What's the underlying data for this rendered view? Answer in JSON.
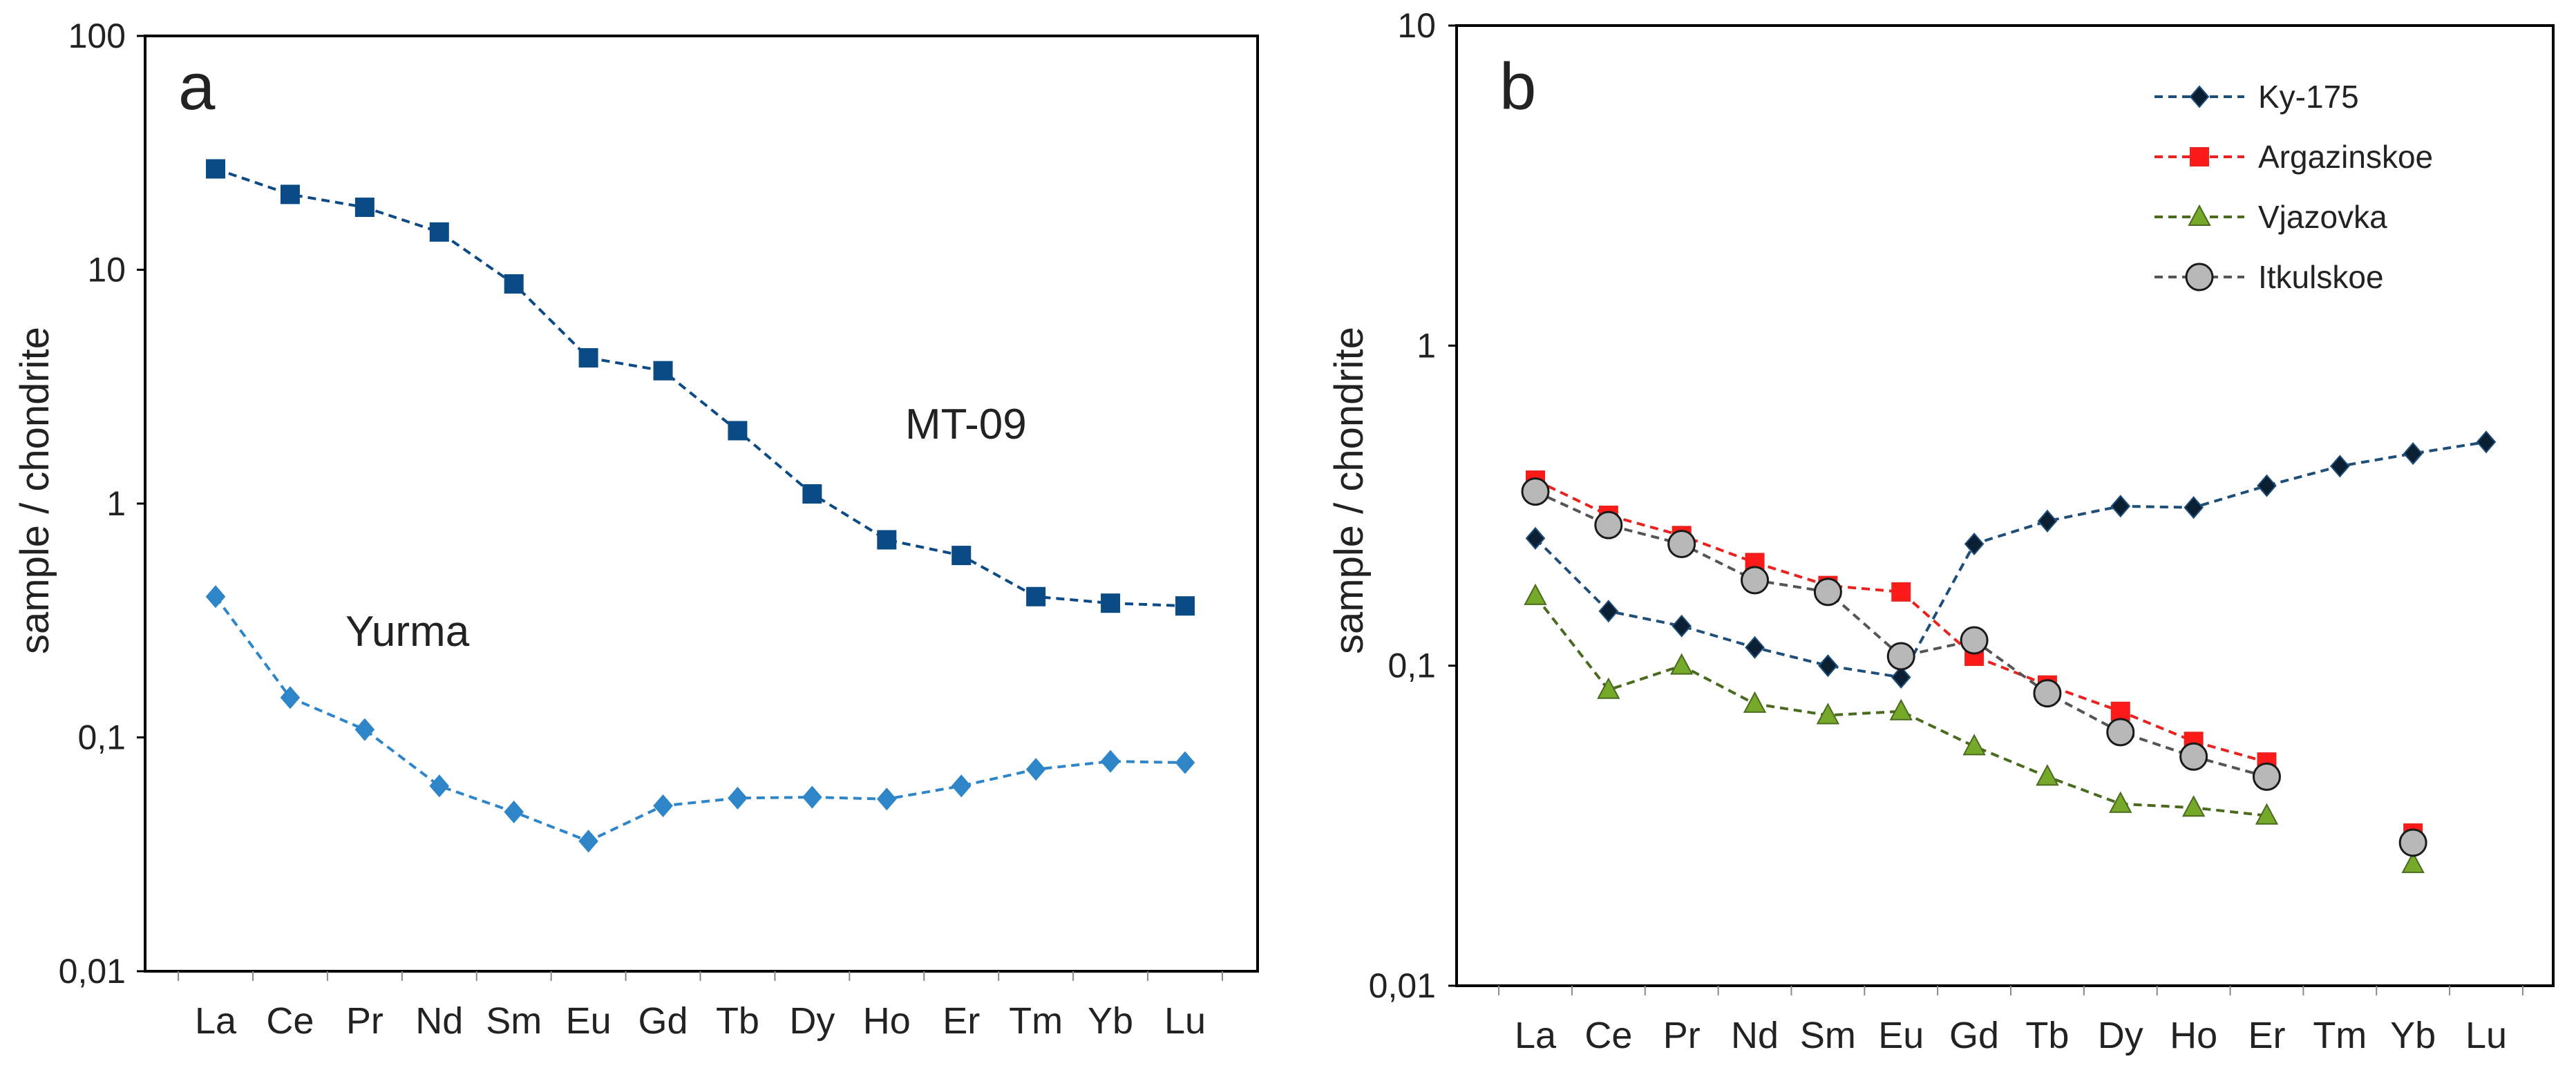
{
  "chart_data": [
    {
      "type": "line",
      "panel_label": "a",
      "ylabel": "sample / chondrite",
      "yscale": "log",
      "ylim": [
        0.01,
        100
      ],
      "y_ticks": [
        0.01,
        0.1,
        1,
        10,
        100
      ],
      "y_tick_labels": [
        "0,01",
        "0,1",
        "1",
        "10",
        "100"
      ],
      "categories": [
        "La",
        "Ce",
        "Pr",
        "Nd",
        "Sm",
        "Eu",
        "Gd",
        "Tb",
        "Dy",
        "Ho",
        "Er",
        "Tm",
        "Yb",
        "Lu"
      ],
      "series": [
        {
          "name": "MT-09",
          "marker": "square",
          "color": "#0a4a85",
          "values": [
            27,
            21,
            18.5,
            14.5,
            8.7,
            4.2,
            3.7,
            2.05,
            1.1,
            0.7,
            0.6,
            0.4,
            0.375,
            0.365
          ]
        },
        {
          "name": "Yurma",
          "marker": "diamond",
          "color": "#2e86c8",
          "values": [
            0.4,
            0.148,
            0.108,
            0.062,
            0.048,
            0.036,
            0.051,
            0.055,
            0.0555,
            0.0545,
            0.062,
            0.073,
            0.079,
            0.078
          ]
        }
      ],
      "annotations": [
        {
          "text": "MT-09",
          "series": "MT-09"
        },
        {
          "text": "Yurma",
          "series": "Yurma"
        }
      ]
    },
    {
      "type": "line",
      "panel_label": "b",
      "ylabel": "sample / chondrite",
      "yscale": "log",
      "ylim": [
        0.01,
        10
      ],
      "y_ticks": [
        0.01,
        0.1,
        1,
        10
      ],
      "y_tick_labels": [
        "0,01",
        "0,1",
        "1",
        "10"
      ],
      "categories": [
        "La",
        "Ce",
        "Pr",
        "Nd",
        "Sm",
        "Eu",
        "Gd",
        "Tb",
        "Dy",
        "Ho",
        "Er",
        "Tm",
        "Yb",
        "Lu"
      ],
      "legend_position": "top-right",
      "series": [
        {
          "name": "Ky-175",
          "marker": "diamond",
          "color": "#1f4e79",
          "fill": "#0b1f33",
          "values": [
            0.25,
            0.148,
            0.133,
            0.114,
            0.1,
            0.092,
            0.24,
            0.283,
            0.315,
            0.312,
            0.365,
            0.42,
            0.46,
            0.5
          ]
        },
        {
          "name": "Argazinskoe",
          "marker": "square",
          "color": "#e8231f",
          "fill": "#ff1a1a",
          "values": [
            0.38,
            0.295,
            0.255,
            0.21,
            0.178,
            0.17,
            0.107,
            0.087,
            0.072,
            0.058,
            0.05,
            null,
            0.03,
            null
          ]
        },
        {
          "name": "Vjazovka",
          "marker": "triangle",
          "color": "#4a6b1f",
          "fill": "#76a82a",
          "values": [
            0.165,
            0.084,
            0.1,
            0.076,
            0.07,
            0.072,
            0.056,
            0.045,
            0.037,
            0.036,
            0.034,
            null,
            0.024,
            null
          ]
        },
        {
          "name": "Itkulskoe",
          "marker": "circle",
          "color": "#555555",
          "fill": "#b8b8b8",
          "values": [
            0.35,
            0.275,
            0.24,
            0.185,
            0.17,
            0.107,
            0.12,
            0.082,
            0.062,
            0.052,
            0.045,
            null,
            0.028,
            null
          ]
        }
      ]
    }
  ]
}
